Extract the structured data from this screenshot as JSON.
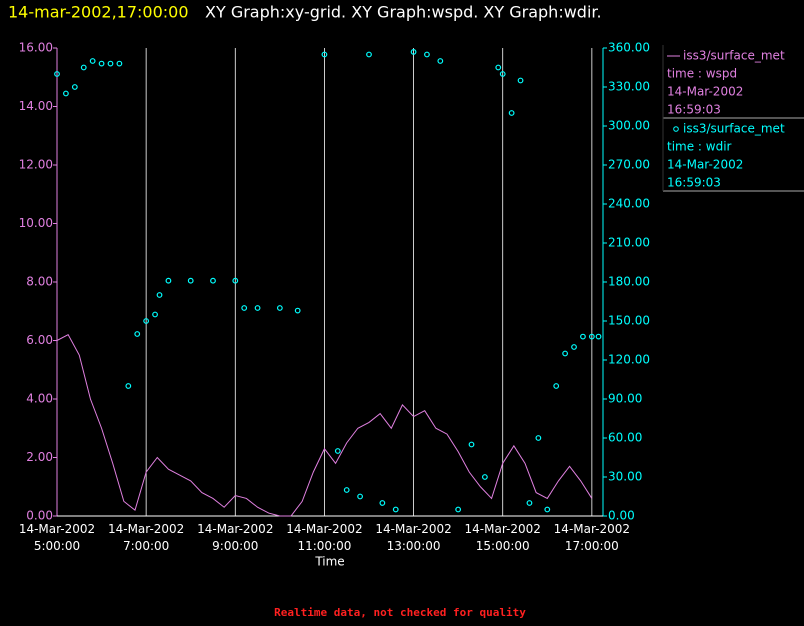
{
  "chart_data": {
    "type": "line",
    "title": "14-mar-2002,17:00:00",
    "subtitle": "XY Graph:xy-grid.  XY Graph:wspd.  XY Graph:wdir.",
    "x_label": "Time",
    "footer": "Realtime data, not checked for quality",
    "xlim": [
      5,
      17.25
    ],
    "xticks": [
      {
        "value": 5,
        "label": "14-Mar-2002 5:00:00"
      },
      {
        "value": 7,
        "label": "14-Mar-2002 7:00:00"
      },
      {
        "value": 9,
        "label": "14-Mar-2002 9:00:00"
      },
      {
        "value": 11,
        "label": "14-Mar-2002 11:00:00"
      },
      {
        "value": 13,
        "label": "14-Mar-2002 13:00:00"
      },
      {
        "value": 15,
        "label": "14-Mar-2002 15:00:00"
      },
      {
        "value": 17,
        "label": "14-Mar-2002 17:00:00"
      }
    ],
    "ylim": [
      0,
      16
    ],
    "yticks": [
      {
        "value": 0,
        "label": "0.00"
      },
      {
        "value": 2,
        "label": "2.00"
      },
      {
        "value": 4,
        "label": "4.00"
      },
      {
        "value": 6,
        "label": "6.00"
      },
      {
        "value": 8,
        "label": "8.00"
      },
      {
        "value": 10,
        "label": "10.00"
      },
      {
        "value": 12,
        "label": "12.00"
      },
      {
        "value": 14,
        "label": "14.00"
      },
      {
        "value": 16,
        "label": "16.00"
      }
    ],
    "y2lim": [
      0,
      360
    ],
    "y2ticks": [
      {
        "value": 0,
        "label": "0.00"
      },
      {
        "value": 30,
        "label": "30.00"
      },
      {
        "value": 60,
        "label": "60.00"
      },
      {
        "value": 90,
        "label": "90.00"
      },
      {
        "value": 120,
        "label": "120.00"
      },
      {
        "value": 150,
        "label": "150.00"
      },
      {
        "value": 180,
        "label": "180.00"
      },
      {
        "value": 210,
        "label": "210.00"
      },
      {
        "value": 240,
        "label": "240.00"
      },
      {
        "value": 270,
        "label": "270.00"
      },
      {
        "value": 300,
        "label": "300.00"
      },
      {
        "value": 330,
        "label": "330.00"
      },
      {
        "value": 360,
        "label": "360.00"
      }
    ],
    "grid": true,
    "series": [
      {
        "name": "iss3/surface_met",
        "label": "time : wspd",
        "timestamp": [
          "14-Mar-2002",
          "16:59:03"
        ],
        "type": "line",
        "color": "#e080e0",
        "x": [
          5,
          5.25,
          5.5,
          5.75,
          6,
          6.25,
          6.5,
          6.75,
          7,
          7.25,
          7.5,
          7.75,
          8,
          8.25,
          8.5,
          8.75,
          9,
          9.25,
          9.5,
          9.75,
          10,
          10.25,
          10.5,
          10.75,
          11,
          11.25,
          11.5,
          11.75,
          12,
          12.25,
          12.5,
          12.75,
          13,
          13.25,
          13.5,
          13.75,
          14,
          14.25,
          14.5,
          14.75,
          15,
          15.25,
          15.5,
          15.75,
          16,
          16.25,
          16.5,
          16.75,
          17
        ],
        "values": [
          6.0,
          6.2,
          5.5,
          4.0,
          3.0,
          1.8,
          0.5,
          0.2,
          1.5,
          2.0,
          1.6,
          1.4,
          1.2,
          0.8,
          0.6,
          0.3,
          0.7,
          0.6,
          0.3,
          0.1,
          0.0,
          0.0,
          0.5,
          1.5,
          2.3,
          1.8,
          2.5,
          3.0,
          3.2,
          3.5,
          3.0,
          3.8,
          3.4,
          3.6,
          3.0,
          2.8,
          2.2,
          1.5,
          1.0,
          0.6,
          1.8,
          2.4,
          1.8,
          0.8,
          0.6,
          1.2,
          1.7,
          1.2,
          0.6
        ]
      },
      {
        "name": "iss3/surface_met",
        "label": "time : wdir",
        "timestamp": [
          "14-Mar-2002",
          "16:59:03"
        ],
        "type": "scatter",
        "axis": "y2",
        "color": "#00ffff",
        "x": [
          5.0,
          5.2,
          5.4,
          5.6,
          5.8,
          6.0,
          6.2,
          6.4,
          6.6,
          6.8,
          7.0,
          7.2,
          7.3,
          7.5,
          8.0,
          8.5,
          9.0,
          9.2,
          9.5,
          10.0,
          10.4,
          11.0,
          11.3,
          11.5,
          11.8,
          12.0,
          12.3,
          12.6,
          13.0,
          13.3,
          13.6,
          14.0,
          14.3,
          14.6,
          14.9,
          15.0,
          15.2,
          15.4,
          15.6,
          15.8,
          16.0,
          16.2,
          16.4,
          16.6,
          16.8,
          17.0,
          17.15
        ],
        "values": [
          340,
          325,
          330,
          345,
          350,
          348,
          348,
          348,
          100,
          140,
          150,
          155,
          170,
          181,
          181,
          181,
          181,
          160,
          160,
          160,
          158,
          355,
          50,
          20,
          15,
          355,
          10,
          5,
          357,
          355,
          350,
          5,
          55,
          30,
          345,
          340,
          310,
          335,
          10,
          60,
          5,
          100,
          125,
          130,
          138,
          138,
          138
        ]
      }
    ]
  }
}
